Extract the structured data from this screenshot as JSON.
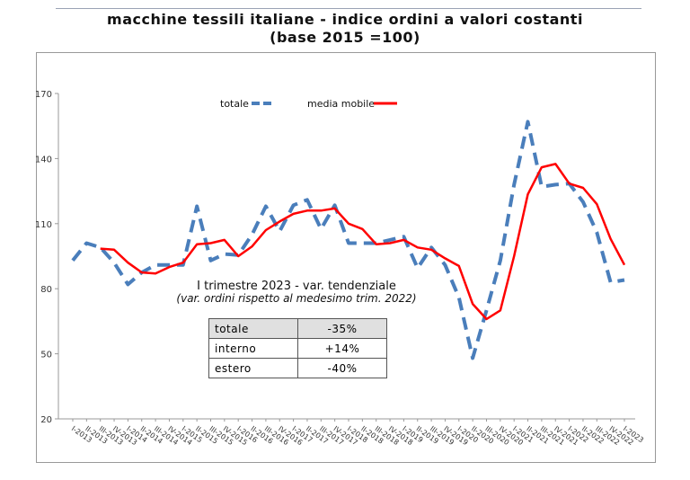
{
  "chart_data": {
    "type": "line",
    "title": "macchine tessili italiane - indice ordini a valori costanti",
    "subtitle": "(base 2015 =100)",
    "categories": [
      "I-2013",
      "II-2013",
      "III-2013",
      "IV-2013",
      "I-2014",
      "II-2014",
      "III-2014",
      "IV-2014",
      "I-2015",
      "II-2015",
      "III-2015",
      "IV-2015",
      "I-2016",
      "II-2016",
      "III-2016",
      "IV-2016",
      "I-2017",
      "II-2017",
      "III-2017",
      "IV-2017",
      "I-2018",
      "II-2018",
      "III-2018",
      "IV-2018",
      "I-2019",
      "II-2019",
      "III-2019",
      "IV-2019",
      "I-2020",
      "II-2020",
      "III-2020",
      "IV-2020",
      "I-2021",
      "II-2021",
      "III-2021",
      "IV-2021",
      "I-2022",
      "II-2022",
      "III-2022",
      "IV-2022",
      "I-2023"
    ],
    "ylim": [
      20,
      170
    ],
    "yticks": [
      20,
      50,
      80,
      110,
      140,
      170
    ],
    "grid": false,
    "legend_position": "top",
    "series": [
      {
        "name": "totale",
        "color": "#4a7ebb",
        "style": "dashed",
        "values": [
          93,
          101,
          99,
          92,
          82,
          87.5,
          91,
          91,
          91,
          118,
          93,
          96,
          95.5,
          105,
          118,
          106.5,
          118.5,
          121,
          107.5,
          118.5,
          101,
          101,
          101,
          102.5,
          104,
          89.5,
          99,
          91,
          76,
          48,
          70,
          93,
          128,
          157,
          127,
          128,
          128.5,
          120,
          106,
          83,
          84
        ]
      },
      {
        "name": "media mobile",
        "color": "#ff0000",
        "style": "solid",
        "values": [
          null,
          null,
          98.5,
          98,
          92,
          87.5,
          87,
          90,
          92,
          100.5,
          101,
          102.5,
          95,
          99.5,
          107,
          111,
          114.5,
          116,
          116,
          117,
          110,
          107.5,
          100.5,
          101,
          102.5,
          99,
          98,
          94,
          90.5,
          73,
          66,
          70,
          95,
          123.5,
          136,
          137.5,
          128.5,
          126.5,
          119,
          103,
          91
        ]
      }
    ]
  },
  "annotation": {
    "title": "I trimestre 2023 - var. tendenziale",
    "subtitle": "(var. ordini rispetto al medesimo trim. 2022)",
    "rows": [
      {
        "label": "totale",
        "value": "-35%"
      },
      {
        "label": "interno",
        "value": "+14%"
      },
      {
        "label": "estero",
        "value": "-40%"
      }
    ]
  }
}
